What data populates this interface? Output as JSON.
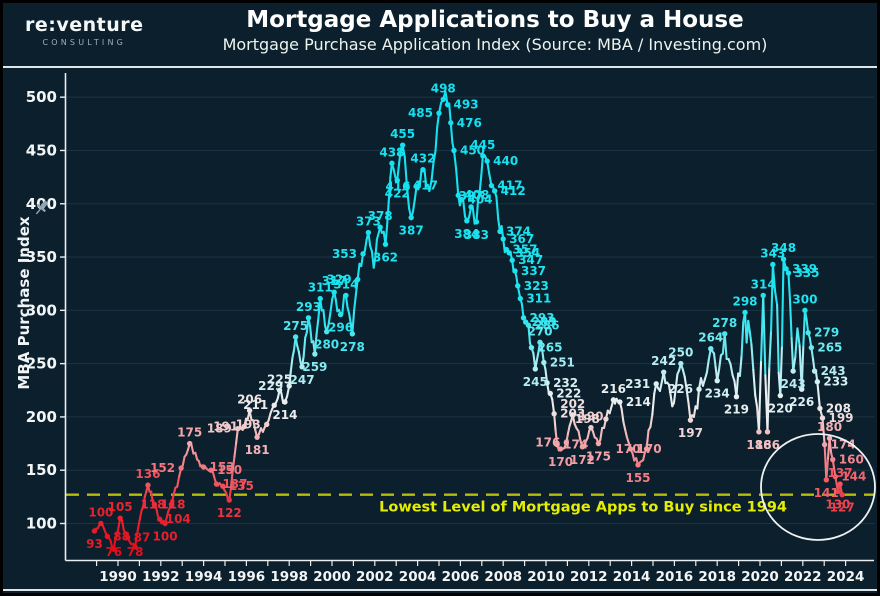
{
  "header": {
    "logo_line1": "re:venture",
    "logo_line2": "CONSULTING",
    "title": "Mortgage Applications to Buy a House",
    "subtitle": "Mortgage Purchase Application Index (Source: MBA / Investing.com)"
  },
  "chart_data": {
    "type": "line",
    "title": "Mortgage Applications to Buy a House",
    "subtitle": "Mortgage Purchase Application Index (Source: MBA / Investing.com)",
    "ylabel": "MBA Purchase Index",
    "xlabel": "",
    "ylim": [
      75,
      510
    ],
    "xlim": [
      1988.7,
      2024.6
    ],
    "yticks": [
      100,
      150,
      200,
      250,
      300,
      350,
      400,
      450,
      500
    ],
    "xticks": [
      1990,
      1992,
      1994,
      1996,
      1998,
      2000,
      2002,
      2004,
      2006,
      2008,
      2010,
      2012,
      2014,
      2016,
      2018,
      2020,
      2022,
      2024
    ],
    "grid": "horizontal",
    "legend": "none",
    "annotation": {
      "text": "Lowest Level of Mortgage Apps to Buy since 1994",
      "threshold_value": 127
    },
    "colors": {
      "background": "#0b1f2c",
      "grid": "#2a4153",
      "axis": "#e9eef0",
      "line_low": "#e9101f",
      "line_mid": "#f0efee",
      "line_high": "#19e3f0",
      "threshold_line": "#b9bd0e",
      "annotation_text": "#e4ee00",
      "highlight_circle": "#eef2f4"
    },
    "series": [
      {
        "name": "Mortgage Purchase Application Index",
        "points": [
          [
            1988.9,
            93,
            1
          ],
          [
            1989.2,
            100,
            1
          ],
          [
            1989.5,
            88,
            1
          ],
          [
            1989.8,
            76,
            1
          ],
          [
            1990.1,
            105,
            1
          ],
          [
            1990.45,
            87,
            1
          ],
          [
            1990.8,
            78,
            1
          ],
          [
            1991.1,
            112,
            0
          ],
          [
            1991.4,
            136,
            1
          ],
          [
            1991.7,
            118,
            1
          ],
          [
            1991.95,
            104,
            1
          ],
          [
            1992.2,
            100,
            1
          ],
          [
            1992.5,
            118,
            1
          ],
          [
            1992.95,
            152,
            1
          ],
          [
            1993.35,
            175,
            1
          ],
          [
            1993.7,
            160,
            0
          ],
          [
            1994.0,
            153,
            1
          ],
          [
            1994.35,
            150,
            1
          ],
          [
            1994.6,
            137,
            1
          ],
          [
            1994.9,
            135,
            1
          ],
          [
            1995.2,
            122,
            1
          ],
          [
            1995.6,
            189,
            1
          ],
          [
            1995.9,
            191,
            1
          ],
          [
            1996.15,
            206,
            1
          ],
          [
            1996.5,
            181,
            1
          ],
          [
            1996.95,
            193,
            1
          ],
          [
            1997.3,
            211,
            1
          ],
          [
            1997.55,
            225,
            1
          ],
          [
            1997.8,
            214,
            1
          ],
          [
            1998.0,
            229,
            1
          ],
          [
            1998.3,
            275,
            1
          ],
          [
            1998.6,
            247,
            1
          ],
          [
            1998.9,
            293,
            1
          ],
          [
            1999.2,
            259,
            1
          ],
          [
            1999.45,
            311,
            1
          ],
          [
            1999.75,
            280,
            1
          ],
          [
            2000.1,
            317,
            1
          ],
          [
            2000.4,
            296,
            1
          ],
          [
            2000.65,
            314,
            1
          ],
          [
            2000.95,
            278,
            1
          ],
          [
            2001.2,
            329,
            1
          ],
          [
            2001.45,
            353,
            1
          ],
          [
            2001.7,
            373,
            1
          ],
          [
            2001.95,
            340,
            0
          ],
          [
            2002.25,
            378,
            1
          ],
          [
            2002.5,
            362,
            1
          ],
          [
            2002.8,
            438,
            1
          ],
          [
            2003.05,
            422,
            1
          ],
          [
            2003.3,
            455,
            1
          ],
          [
            2003.5,
            417,
            1
          ],
          [
            2003.7,
            387,
            1
          ],
          [
            2003.95,
            416,
            1
          ],
          [
            2004.25,
            432,
            1
          ],
          [
            2004.55,
            412,
            0
          ],
          [
            2004.75,
            440,
            0
          ],
          [
            2005.0,
            485,
            1
          ],
          [
            2005.2,
            498,
            1
          ],
          [
            2005.4,
            493,
            1
          ],
          [
            2005.55,
            476,
            1
          ],
          [
            2005.7,
            450,
            1
          ],
          [
            2005.9,
            408,
            1
          ],
          [
            2006.05,
            404,
            1
          ],
          [
            2006.3,
            384,
            1
          ],
          [
            2006.5,
            397,
            1
          ],
          [
            2006.75,
            383,
            1
          ],
          [
            2007.05,
            445,
            1
          ],
          [
            2007.25,
            440,
            1
          ],
          [
            2007.45,
            417,
            1
          ],
          [
            2007.6,
            412,
            1
          ],
          [
            2007.85,
            374,
            1
          ],
          [
            2008.0,
            367,
            1
          ],
          [
            2008.15,
            357,
            1
          ],
          [
            2008.28,
            354,
            1
          ],
          [
            2008.42,
            347,
            1
          ],
          [
            2008.55,
            337,
            1
          ],
          [
            2008.68,
            323,
            1
          ],
          [
            2008.8,
            311,
            1
          ],
          [
            2008.95,
            293,
            1
          ],
          [
            2009.05,
            289,
            1
          ],
          [
            2009.18,
            286,
            1
          ],
          [
            2009.32,
            265,
            1
          ],
          [
            2009.5,
            245,
            1
          ],
          [
            2009.72,
            270,
            1
          ],
          [
            2009.9,
            251,
            1
          ],
          [
            2010.05,
            232,
            1
          ],
          [
            2010.2,
            222,
            1
          ],
          [
            2010.38,
            203,
            1
          ],
          [
            2010.52,
            174,
            1
          ],
          [
            2010.68,
            170,
            1
          ],
          [
            2010.95,
            176,
            1
          ],
          [
            2011.25,
            202,
            1
          ],
          [
            2011.7,
            172,
            1
          ],
          [
            2012.1,
            190,
            1
          ],
          [
            2012.45,
            175,
            1
          ],
          [
            2012.8,
            198,
            1
          ],
          [
            2013.15,
            216,
            1
          ],
          [
            2013.45,
            214,
            1
          ],
          [
            2013.95,
            170,
            1
          ],
          [
            2014.3,
            155,
            1
          ],
          [
            2014.7,
            170,
            1
          ],
          [
            2015.15,
            231,
            1
          ],
          [
            2015.5,
            242,
            1
          ],
          [
            2015.9,
            210,
            0
          ],
          [
            2016.3,
            250,
            1
          ],
          [
            2016.75,
            197,
            1
          ],
          [
            2017.15,
            226,
            1
          ],
          [
            2017.7,
            264,
            1
          ],
          [
            2018.0,
            234,
            1
          ],
          [
            2018.35,
            278,
            1
          ],
          [
            2018.9,
            219,
            1
          ],
          [
            2019.3,
            298,
            1
          ],
          [
            2019.6,
            268,
            0
          ],
          [
            2019.95,
            186,
            1
          ],
          [
            2020.15,
            314,
            1
          ],
          [
            2020.35,
            186,
            1
          ],
          [
            2020.6,
            343,
            1
          ],
          [
            2020.8,
            305,
            0
          ],
          [
            2020.95,
            220,
            1
          ],
          [
            2021.1,
            348,
            1
          ],
          [
            2021.22,
            339,
            1
          ],
          [
            2021.33,
            335,
            1
          ],
          [
            2021.55,
            243,
            1
          ],
          [
            2021.75,
            283,
            0
          ],
          [
            2021.95,
            226,
            1
          ],
          [
            2022.1,
            300,
            1
          ],
          [
            2022.25,
            279,
            1
          ],
          [
            2022.4,
            265,
            1
          ],
          [
            2022.55,
            243,
            1
          ],
          [
            2022.68,
            233,
            1
          ],
          [
            2022.8,
            208,
            1
          ],
          [
            2022.92,
            199,
            1
          ],
          [
            2023.02,
            174,
            1
          ],
          [
            2023.1,
            141,
            1
          ],
          [
            2023.25,
            180,
            1
          ],
          [
            2023.4,
            160,
            1
          ],
          [
            2023.52,
            144,
            1
          ],
          [
            2023.64,
            130,
            1
          ],
          [
            2023.74,
            137,
            1
          ],
          [
            2023.84,
            127,
            1
          ]
        ]
      }
    ]
  }
}
